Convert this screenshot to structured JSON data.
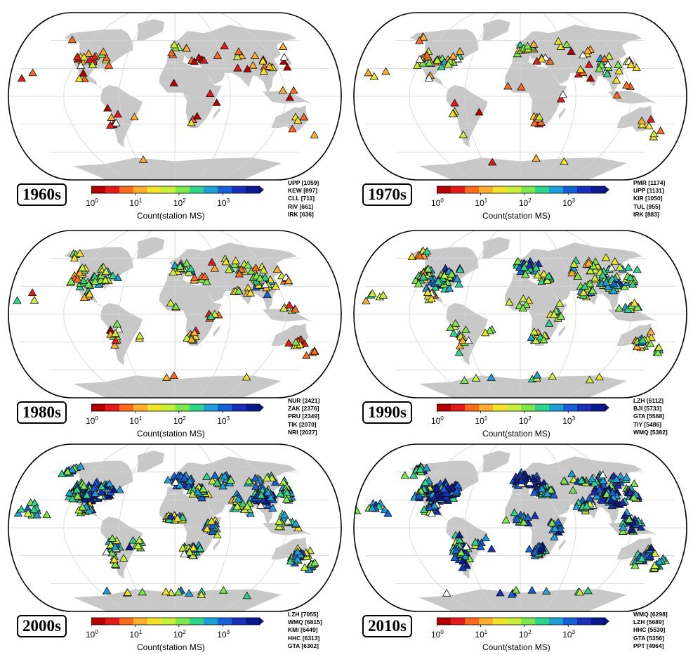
{
  "colorbar": {
    "label": "Count(station MS)",
    "ticks": [
      {
        "base": "10",
        "exp": "0",
        "value": 1
      },
      {
        "base": "10",
        "exp": "1",
        "value": 10
      },
      {
        "base": "10",
        "exp": "2",
        "value": 100
      },
      {
        "base": "10",
        "exp": "3",
        "value": 1000
      }
    ],
    "scale": "log",
    "range": [
      1,
      7000
    ],
    "colors": [
      "#b30000",
      "#e31a1c",
      "#fd6a1e",
      "#fdae2f",
      "#f3e22b",
      "#c8f03a",
      "#7ee74e",
      "#2ed38c",
      "#1f9fd8",
      "#1660d6",
      "#1a2fb8",
      "#0a1a8c"
    ]
  },
  "map": {
    "land_color": "#c8c8c8",
    "ocean_color": "#ffffff",
    "projection": "Eckert-like pseudocylindrical",
    "marker": "triangle"
  },
  "panels": [
    {
      "decade": "1960s",
      "top_stations": [
        "UPP [1059]",
        "KEW [897]",
        "CLL [711]",
        "RIV [661]",
        "IRK [636]"
      ]
    },
    {
      "decade": "1970s",
      "top_stations": [
        "PMR [1174]",
        "UPP [1131]",
        "KIR [1050]",
        "TUL [955]",
        "IRK [883]"
      ]
    },
    {
      "decade": "1980s",
      "top_stations": [
        "NUR [2421]",
        "ZAK [2376]",
        "PRU [2349]",
        "TIK [2070]",
        "NRI [2027]"
      ]
    },
    {
      "decade": "1990s",
      "top_stations": [
        "LZH [6112]",
        "BJI [5733]",
        "GTA [5568]",
        "TIY [5486]",
        "WMQ [5382]"
      ]
    },
    {
      "decade": "2000s",
      "top_stations": [
        "LZH [7055]",
        "WMQ [6815]",
        "KMI [6449]",
        "HHC [6313]",
        "GTA [6302]"
      ]
    },
    {
      "decade": "2010s",
      "top_stations": [
        "WMQ [6298]",
        "LZH [5689]",
        "HHC [5530]",
        "GTA [5356]",
        "PPT [4964]"
      ]
    }
  ]
}
